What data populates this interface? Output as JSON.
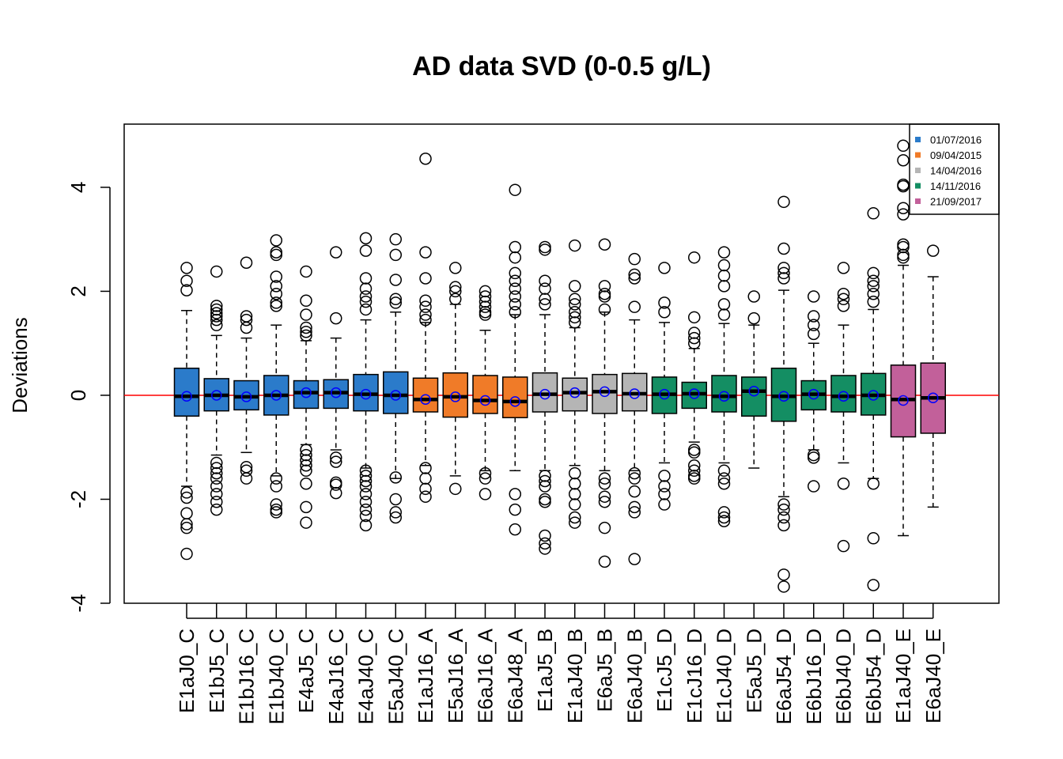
{
  "chart_data": {
    "type": "box",
    "title": "AD data SVD (0-0.5 g/L)",
    "xlabel": "",
    "ylabel": "Deviations",
    "ylim": [
      -4,
      5.2
    ],
    "y_ticks": [
      -4,
      -2,
      0,
      2,
      4
    ],
    "grid": false,
    "reference_line": {
      "y": 0,
      "color": "#ff0000"
    },
    "mean_marker_color": "#0000ff",
    "legend": {
      "position": "top-right",
      "entries": [
        {
          "label": "01/07/2016",
          "color": "#2b7bca"
        },
        {
          "label": "09/04/2015",
          "color": "#f07b28"
        },
        {
          "label": "14/04/2016",
          "color": "#b5b5b5"
        },
        {
          "label": "14/11/2016",
          "color": "#148e63"
        },
        {
          "label": "21/09/2017",
          "color": "#c2609a"
        }
      ]
    },
    "series": [
      {
        "name": "E1aJ0_C",
        "group": 0,
        "whisker_low": -1.75,
        "q1": -0.4,
        "median": -0.02,
        "q3": 0.52,
        "whisker_high": 1.63,
        "mean": -0.02,
        "outliers": [
          2.45,
          2.2,
          2.02,
          -1.87,
          -1.97,
          -2.27,
          -2.48,
          -2.55,
          -3.05
        ]
      },
      {
        "name": "E1bJ5_C",
        "group": 0,
        "whisker_low": -1.15,
        "q1": -0.3,
        "median": 0.0,
        "q3": 0.32,
        "whisker_high": 1.15,
        "mean": 0.0,
        "outliers": [
          2.38,
          1.72,
          1.65,
          1.58,
          1.52,
          1.45,
          1.35,
          -1.3,
          -1.4,
          -1.5,
          -1.6,
          -1.75,
          -1.9,
          -2.05,
          -2.2
        ]
      },
      {
        "name": "E1bJ16_C",
        "group": 0,
        "whisker_low": -1.1,
        "q1": -0.28,
        "median": -0.03,
        "q3": 0.28,
        "whisker_high": 1.1,
        "mean": -0.03,
        "outliers": [
          2.55,
          1.52,
          1.45,
          1.3,
          -1.38,
          -1.45,
          -1.6
        ]
      },
      {
        "name": "E1bJ40_C",
        "group": 0,
        "whisker_low": -1.55,
        "q1": -0.38,
        "median": 0.0,
        "q3": 0.38,
        "whisker_high": 1.35,
        "mean": 0.0,
        "outliers": [
          2.98,
          2.75,
          2.7,
          2.28,
          2.1,
          1.95,
          1.78,
          1.72,
          -1.6,
          -1.75,
          -2.1,
          -2.2,
          -2.25
        ]
      },
      {
        "name": "E4aJ5_C",
        "group": 0,
        "whisker_low": -0.95,
        "q1": -0.25,
        "median": 0.05,
        "q3": 0.28,
        "whisker_high": 1.05,
        "mean": 0.05,
        "outliers": [
          2.38,
          1.82,
          1.55,
          1.3,
          1.22,
          1.15,
          -1.05,
          -1.15,
          -1.25,
          -1.35,
          -1.45,
          -1.7,
          -2.15,
          -2.45
        ]
      },
      {
        "name": "E4aJ16_C",
        "group": 0,
        "whisker_low": -1.05,
        "q1": -0.25,
        "median": 0.05,
        "q3": 0.3,
        "whisker_high": 1.1,
        "mean": 0.05,
        "outliers": [
          2.75,
          1.48,
          -1.2,
          -1.28,
          -1.68,
          -1.72,
          -1.88
        ]
      },
      {
        "name": "E4aJ40_C",
        "group": 0,
        "whisker_low": -1.4,
        "q1": -0.3,
        "median": 0.02,
        "q3": 0.4,
        "whisker_high": 1.45,
        "mean": 0.02,
        "outliers": [
          3.02,
          2.78,
          2.25,
          2.05,
          1.9,
          1.8,
          1.65,
          -1.45,
          -1.55,
          -1.65,
          -1.75,
          -1.9,
          -2.05,
          -2.2,
          -2.32,
          -2.5
        ]
      },
      {
        "name": "E5aJ40_C",
        "group": 0,
        "whisker_low": -1.6,
        "q1": -0.35,
        "median": 0.0,
        "q3": 0.45,
        "whisker_high": 1.6,
        "mean": 0.0,
        "outliers": [
          3.0,
          2.7,
          2.22,
          1.85,
          1.78,
          -1.58,
          -2.0,
          -2.25,
          -2.35
        ]
      },
      {
        "name": "E1aJ16_A",
        "group": 1,
        "whisker_low": -1.35,
        "q1": -0.32,
        "median": -0.08,
        "q3": 0.33,
        "whisker_high": 1.4,
        "mean": -0.08,
        "outliers": [
          4.55,
          2.75,
          2.25,
          1.82,
          1.7,
          1.55,
          1.45,
          -1.4,
          -1.6,
          -1.8,
          -1.95
        ]
      },
      {
        "name": "E5aJ16_A",
        "group": 1,
        "whisker_low": -1.55,
        "q1": -0.42,
        "median": -0.03,
        "q3": 0.43,
        "whisker_high": 1.75,
        "mean": -0.03,
        "outliers": [
          2.45,
          2.08,
          2.0,
          1.85,
          -1.8
        ]
      },
      {
        "name": "E6aJ16_A",
        "group": 1,
        "whisker_low": -1.45,
        "q1": -0.35,
        "median": -0.1,
        "q3": 0.38,
        "whisker_high": 1.25,
        "mean": -0.1,
        "outliers": [
          2.0,
          1.9,
          1.8,
          1.7,
          1.6,
          1.55,
          -1.5,
          -1.6,
          -1.9
        ]
      },
      {
        "name": "E6aJ48_A",
        "group": 1,
        "whisker_low": -1.45,
        "q1": -0.43,
        "median": -0.12,
        "q3": 0.35,
        "whisker_high": 1.55,
        "mean": -0.12,
        "outliers": [
          3.95,
          2.85,
          2.65,
          2.35,
          2.2,
          2.05,
          1.9,
          1.75,
          1.6,
          -1.9,
          -2.2,
          -2.58
        ]
      },
      {
        "name": "E1aJ5_B",
        "group": 2,
        "whisker_low": -1.45,
        "q1": -0.32,
        "median": 0.02,
        "q3": 0.43,
        "whisker_high": 1.55,
        "mean": 0.02,
        "outliers": [
          2.85,
          2.8,
          2.2,
          2.05,
          1.85,
          1.75,
          -1.55,
          -1.65,
          -1.75,
          -2.0,
          -2.05,
          -2.7,
          -2.85,
          -2.95
        ]
      },
      {
        "name": "E1aJ40_B",
        "group": 2,
        "whisker_low": -1.35,
        "q1": -0.3,
        "median": 0.05,
        "q3": 0.33,
        "whisker_high": 1.3,
        "mean": 0.05,
        "outliers": [
          2.88,
          2.1,
          1.85,
          1.75,
          1.6,
          1.5,
          1.4,
          -1.5,
          -1.7,
          -1.9,
          -2.1,
          -2.35,
          -2.45
        ]
      },
      {
        "name": "E6aJ5_B",
        "group": 2,
        "whisker_low": -1.45,
        "q1": -0.35,
        "median": 0.07,
        "q3": 0.4,
        "whisker_high": 1.6,
        "mean": 0.07,
        "outliers": [
          2.9,
          2.1,
          1.95,
          1.9,
          1.65,
          -1.6,
          -1.7,
          -1.95,
          -2.05,
          -2.55,
          -3.2
        ]
      },
      {
        "name": "E6aJ40_B",
        "group": 2,
        "whisker_low": -1.45,
        "q1": -0.3,
        "median": 0.03,
        "q3": 0.42,
        "whisker_high": 1.45,
        "mean": 0.03,
        "outliers": [
          2.62,
          2.32,
          2.25,
          1.7,
          -1.5,
          -1.6,
          -1.85,
          -2.15,
          -2.25,
          -3.15
        ]
      },
      {
        "name": "E1cJ5_D",
        "group": 3,
        "whisker_low": -1.3,
        "q1": -0.35,
        "median": 0.02,
        "q3": 0.35,
        "whisker_high": 1.4,
        "mean": 0.02,
        "outliers": [
          2.45,
          1.78,
          1.6,
          -1.55,
          -1.75,
          -1.9,
          -2.1
        ]
      },
      {
        "name": "E1cJ16_D",
        "group": 3,
        "whisker_low": -0.9,
        "q1": -0.25,
        "median": 0.03,
        "q3": 0.25,
        "whisker_high": 0.9,
        "mean": 0.03,
        "outliers": [
          2.65,
          1.5,
          1.2,
          1.1,
          1.0,
          -1.05,
          -1.1,
          -1.35,
          -1.45,
          -1.55,
          -1.6
        ]
      },
      {
        "name": "E1cJ40_D",
        "group": 3,
        "whisker_low": -1.3,
        "q1": -0.32,
        "median": -0.02,
        "q3": 0.38,
        "whisker_high": 1.38,
        "mean": -0.02,
        "outliers": [
          2.75,
          2.5,
          2.3,
          2.1,
          1.75,
          1.55,
          -1.45,
          -1.6,
          -1.7,
          -2.25,
          -2.35,
          -2.42
        ]
      },
      {
        "name": "E5aJ5_D",
        "group": 3,
        "whisker_low": -1.4,
        "q1": -0.4,
        "median": 0.08,
        "q3": 0.35,
        "whisker_high": 1.35,
        "mean": 0.08,
        "outliers": [
          1.9,
          1.48
        ]
      },
      {
        "name": "E6aJ54_D",
        "group": 3,
        "whisker_low": -1.95,
        "q1": -0.5,
        "median": -0.02,
        "q3": 0.52,
        "whisker_high": 2.02,
        "mean": -0.02,
        "outliers": [
          3.72,
          2.82,
          2.45,
          2.35,
          2.25,
          -2.1,
          -2.2,
          -2.35,
          -2.5,
          -3.45,
          -3.68
        ]
      },
      {
        "name": "E6bJ16_D",
        "group": 3,
        "whisker_low": -1.05,
        "q1": -0.28,
        "median": 0.02,
        "q3": 0.28,
        "whisker_high": 1.0,
        "mean": 0.02,
        "outliers": [
          1.9,
          1.52,
          1.35,
          1.18,
          -1.15,
          -1.2,
          -1.75
        ]
      },
      {
        "name": "E6bJ40_D",
        "group": 3,
        "whisker_low": -1.3,
        "q1": -0.32,
        "median": -0.02,
        "q3": 0.38,
        "whisker_high": 1.35,
        "mean": -0.02,
        "outliers": [
          2.45,
          1.95,
          1.85,
          1.72,
          -1.7,
          -2.9
        ]
      },
      {
        "name": "E6bJ54_D",
        "group": 3,
        "whisker_low": -1.6,
        "q1": -0.38,
        "median": 0.0,
        "q3": 0.42,
        "whisker_high": 1.65,
        "mean": 0.0,
        "outliers": [
          3.5,
          2.35,
          2.2,
          2.1,
          1.95,
          1.8,
          -1.7,
          -2.75,
          -3.65
        ]
      },
      {
        "name": "E1aJ40_E",
        "group": 4,
        "whisker_low": -2.7,
        "q1": -0.8,
        "median": -0.08,
        "q3": 0.58,
        "whisker_high": 2.5,
        "mean": -0.1,
        "outliers": [
          4.8,
          4.52,
          4.05,
          4.02,
          3.6,
          3.48,
          2.9,
          2.85,
          2.7,
          2.65
        ]
      },
      {
        "name": "E6aJ40_E",
        "group": 4,
        "whisker_low": -2.15,
        "q1": -0.73,
        "median": -0.05,
        "q3": 0.62,
        "whisker_high": 2.28,
        "mean": -0.05,
        "outliers": [
          2.78
        ]
      }
    ]
  }
}
